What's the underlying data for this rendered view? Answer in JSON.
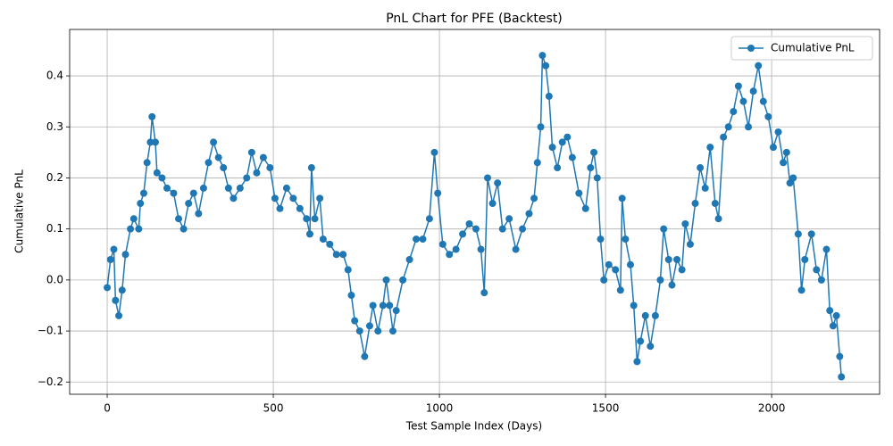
{
  "chart_data": {
    "type": "line",
    "title": "PnL Chart for PFE (Backtest)",
    "x_label": "Test Sample Index (Days)",
    "y_label": "Cumulative PnL",
    "x": [
      0,
      10,
      20,
      25,
      35,
      45,
      55,
      70,
      80,
      95,
      100,
      110,
      120,
      130,
      135,
      145,
      150,
      165,
      180,
      200,
      215,
      230,
      245,
      260,
      275,
      290,
      305,
      320,
      335,
      350,
      365,
      380,
      400,
      420,
      435,
      450,
      470,
      490,
      505,
      520,
      540,
      560,
      580,
      600,
      610,
      615,
      625,
      640,
      650,
      670,
      690,
      710,
      725,
      735,
      745,
      760,
      775,
      790,
      800,
      815,
      830,
      840,
      850,
      860,
      870,
      890,
      910,
      930,
      950,
      970,
      985,
      995,
      1010,
      1030,
      1050,
      1070,
      1090,
      1110,
      1125,
      1135,
      1145,
      1160,
      1175,
      1190,
      1210,
      1230,
      1250,
      1270,
      1285,
      1295,
      1305,
      1310,
      1320,
      1330,
      1340,
      1355,
      1370,
      1385,
      1400,
      1420,
      1440,
      1455,
      1465,
      1475,
      1485,
      1495,
      1510,
      1530,
      1545,
      1550,
      1560,
      1575,
      1585,
      1595,
      1605,
      1620,
      1635,
      1650,
      1665,
      1675,
      1690,
      1700,
      1715,
      1730,
      1740,
      1755,
      1770,
      1785,
      1800,
      1815,
      1830,
      1840,
      1855,
      1870,
      1885,
      1900,
      1915,
      1930,
      1945,
      1960,
      1975,
      1990,
      2005,
      2020,
      2035,
      2045,
      2055,
      2065,
      2080,
      2090,
      2100,
      2120,
      2135,
      2150,
      2165,
      2175,
      2185,
      2195,
      2205,
      2210
    ],
    "series": [
      {
        "name": "Cumulative PnL",
        "color": "#1f77b4",
        "values": [
          -0.015,
          0.04,
          0.06,
          -0.04,
          -0.07,
          -0.02,
          0.05,
          0.1,
          0.12,
          0.1,
          0.15,
          0.17,
          0.23,
          0.27,
          0.32,
          0.27,
          0.21,
          0.2,
          0.18,
          0.17,
          0.12,
          0.1,
          0.15,
          0.17,
          0.13,
          0.18,
          0.23,
          0.27,
          0.24,
          0.22,
          0.18,
          0.16,
          0.18,
          0.2,
          0.25,
          0.21,
          0.24,
          0.22,
          0.16,
          0.14,
          0.18,
          0.16,
          0.14,
          0.12,
          0.09,
          0.22,
          0.12,
          0.16,
          0.08,
          0.07,
          0.05,
          0.05,
          0.02,
          -0.03,
          -0.08,
          -0.1,
          -0.15,
          -0.09,
          -0.05,
          -0.1,
          -0.05,
          0.0,
          -0.05,
          -0.1,
          -0.06,
          0.0,
          0.04,
          0.08,
          0.08,
          0.12,
          0.25,
          0.17,
          0.07,
          0.05,
          0.06,
          0.09,
          0.11,
          0.1,
          0.06,
          -0.025,
          0.2,
          0.15,
          0.19,
          0.1,
          0.12,
          0.06,
          0.1,
          0.13,
          0.16,
          0.23,
          0.3,
          0.44,
          0.42,
          0.36,
          0.26,
          0.22,
          0.27,
          0.28,
          0.24,
          0.17,
          0.14,
          0.22,
          0.25,
          0.2,
          0.08,
          0.0,
          0.03,
          0.02,
          -0.02,
          0.16,
          0.08,
          0.03,
          -0.05,
          -0.16,
          -0.12,
          -0.07,
          -0.13,
          -0.07,
          0.0,
          0.1,
          0.04,
          -0.01,
          0.04,
          0.02,
          0.11,
          0.07,
          0.15,
          0.22,
          0.18,
          0.26,
          0.15,
          0.12,
          0.28,
          0.3,
          0.33,
          0.38,
          0.35,
          0.3,
          0.37,
          0.42,
          0.35,
          0.32,
          0.26,
          0.29,
          0.23,
          0.25,
          0.19,
          0.2,
          0.09,
          -0.02,
          0.04,
          0.09,
          0.02,
          0.0,
          0.06,
          -0.06,
          -0.09,
          -0.07,
          -0.15,
          -0.19
        ]
      }
    ],
    "xlim": [
      -113,
      2325
    ],
    "ylim": [
      -0.224,
      0.491
    ],
    "xticks": [
      0,
      500,
      1000,
      1500,
      2000
    ],
    "yticks": [
      {
        "value": -0.2,
        "label": "−0.2"
      },
      {
        "value": -0.1,
        "label": "−0.1"
      },
      {
        "value": 0,
        "label": "0.0"
      },
      0.1,
      0.2,
      0.3,
      0.4
    ],
    "grid": true,
    "legend": "upper right",
    "marker": "o"
  }
}
